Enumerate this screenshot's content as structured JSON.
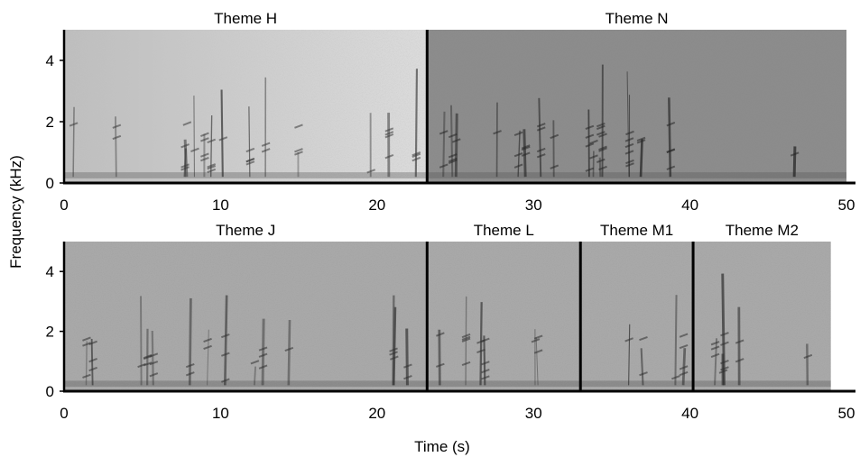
{
  "chart_data": {
    "type": "spectrogram",
    "xlabel": "Time (s)",
    "ylabel": "Frequency (kHz)",
    "ylim": [
      0,
      5
    ],
    "yticks": [
      "0",
      "2",
      "4"
    ],
    "xlim": [
      0,
      50
    ],
    "xticks": [
      "0",
      "10",
      "20",
      "30",
      "40",
      "50"
    ],
    "rows": [
      {
        "panels": [
          {
            "title": "Theme H",
            "tone": "light",
            "t_start": 0,
            "t_end": 23.2
          },
          {
            "title": "Theme N",
            "tone": "dark",
            "t_start": 23.2,
            "t_end": 50
          }
        ]
      },
      {
        "panels": [
          {
            "title": "Theme J",
            "tone": "mid",
            "t_start": 0,
            "t_end": 23.2
          },
          {
            "title": "Theme L",
            "tone": "mid",
            "t_start": 23.2,
            "t_end": 33.0
          },
          {
            "title": "Theme M1",
            "tone": "mid",
            "t_start": 33.0,
            "t_end": 40.2
          },
          {
            "title": "Theme M2",
            "tone": "mid",
            "t_start": 40.2,
            "t_end": 49.0
          }
        ]
      }
    ]
  }
}
